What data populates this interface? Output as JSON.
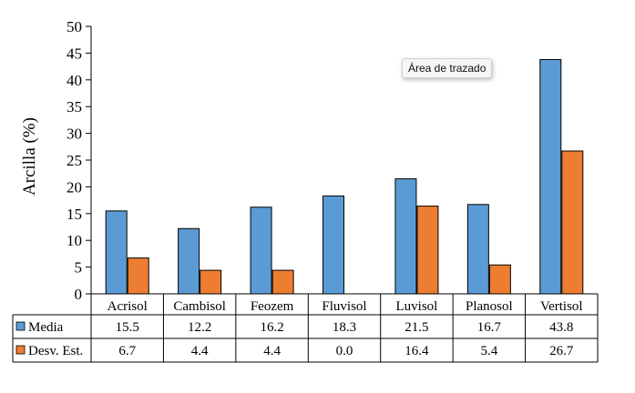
{
  "chart_data": {
    "type": "bar",
    "categories": [
      "Acrisol",
      "Cambisol",
      "Feozem",
      "Fluvisol",
      "Luvisol",
      "Planosol",
      "Vertisol"
    ],
    "series": [
      {
        "name": "Media",
        "values": [
          15.5,
          12.2,
          16.2,
          18.3,
          21.5,
          16.7,
          43.8
        ],
        "labels": [
          "15.5",
          "12.2",
          "16.2",
          "18.3",
          "21.5",
          "16.7",
          "43.8"
        ],
        "color": "#5b9bd5"
      },
      {
        "name": "Desv. Est.",
        "values": [
          6.7,
          4.4,
          4.4,
          0.0,
          16.4,
          5.4,
          26.7
        ],
        "labels": [
          "6.7",
          "4.4",
          "4.4",
          "0.0",
          "16.4",
          "5.4",
          "26.7"
        ],
        "color": "#ed7d31"
      }
    ],
    "ylabel": "Arcilla (%)",
    "ylim": [
      0,
      50
    ],
    "yticks": [
      0,
      5,
      10,
      15,
      20,
      25,
      30,
      35,
      40,
      45,
      50
    ],
    "ytick_labels": [
      "0",
      "5",
      "10",
      "15",
      "20",
      "25",
      "30",
      "35",
      "40",
      "45",
      "50"
    ],
    "grid": false,
    "legend": "data-table-left"
  },
  "tooltip": {
    "text": "Área de trazado"
  }
}
